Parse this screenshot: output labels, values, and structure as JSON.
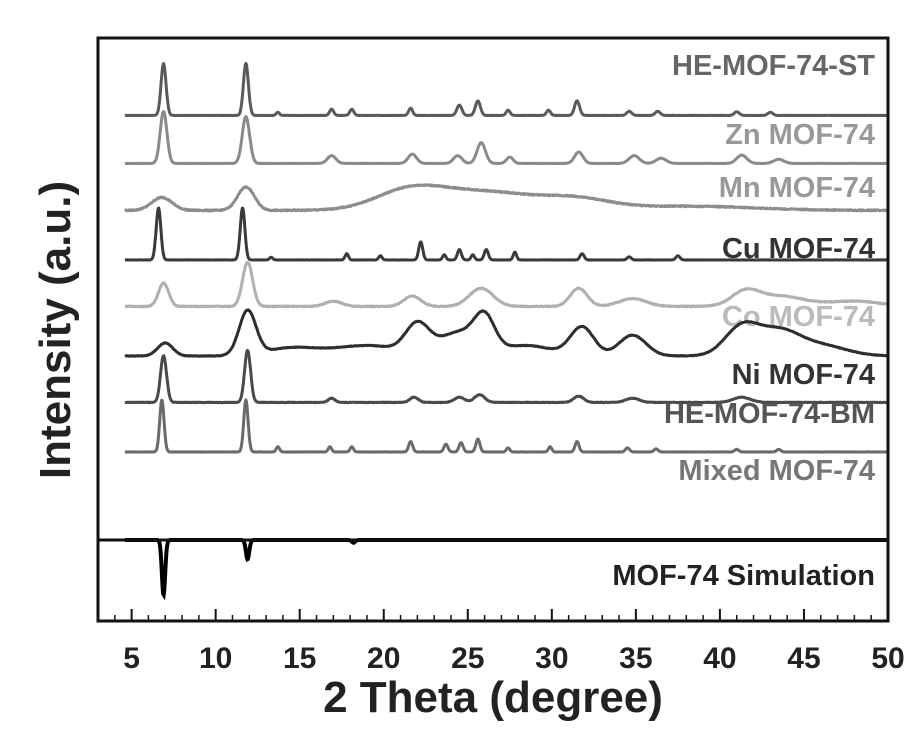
{
  "chart_data": {
    "type": "line",
    "xlabel": "2 Theta (degree)",
    "ylabel": "Intensity (a.u.)",
    "xlim": [
      3,
      50
    ],
    "x_ticks": [
      5,
      10,
      15,
      20,
      25,
      30,
      35,
      40,
      45,
      50
    ],
    "grid": false,
    "legend": "inline labels at right of each trace",
    "series": [
      {
        "name": "HE-MOF-74-ST",
        "color": "#5a5a5a",
        "baseline": 0.03,
        "noise": 0.004,
        "peaks": [
          [
            6.9,
            1.0,
            0.15
          ],
          [
            11.8,
            1.0,
            0.15
          ],
          [
            13.7,
            0.06,
            0.1
          ],
          [
            16.9,
            0.12,
            0.12
          ],
          [
            18.1,
            0.12,
            0.12
          ],
          [
            21.6,
            0.14,
            0.12
          ],
          [
            24.5,
            0.2,
            0.15
          ],
          [
            25.6,
            0.28,
            0.15
          ],
          [
            27.4,
            0.1,
            0.12
          ],
          [
            29.8,
            0.1,
            0.12
          ],
          [
            31.5,
            0.28,
            0.15
          ],
          [
            34.6,
            0.08,
            0.15
          ],
          [
            36.3,
            0.08,
            0.15
          ],
          [
            41.0,
            0.07,
            0.15
          ],
          [
            43.0,
            0.06,
            0.15
          ]
        ]
      },
      {
        "name": "Zn MOF-74",
        "color": "#8a8a8a",
        "baseline": 0.03,
        "noise": 0.004,
        "peaks": [
          [
            6.9,
            1.0,
            0.2
          ],
          [
            11.8,
            0.9,
            0.22
          ],
          [
            16.9,
            0.15,
            0.25
          ],
          [
            21.7,
            0.18,
            0.25
          ],
          [
            24.4,
            0.15,
            0.25
          ],
          [
            25.8,
            0.4,
            0.25
          ],
          [
            27.5,
            0.12,
            0.2
          ],
          [
            31.6,
            0.22,
            0.25
          ],
          [
            34.9,
            0.15,
            0.3
          ],
          [
            36.5,
            0.1,
            0.3
          ],
          [
            41.3,
            0.16,
            0.3
          ],
          [
            43.5,
            0.08,
            0.3
          ]
        ]
      },
      {
        "name": "Mn MOF-74",
        "color": "#8d8d8d",
        "baseline": 0.05,
        "noise": 0.02,
        "peaks": [
          [
            6.8,
            0.25,
            0.6
          ],
          [
            11.8,
            0.45,
            0.5
          ],
          [
            21.5,
            0.35,
            2.0
          ],
          [
            26.0,
            0.35,
            3.0
          ],
          [
            31.5,
            0.18,
            2.0
          ],
          [
            38.0,
            0.08,
            4.0
          ]
        ]
      },
      {
        "name": "Cu MOF-74",
        "color": "#3a3a3a",
        "baseline": 0.02,
        "noise": 0.003,
        "peaks": [
          [
            6.6,
            1.0,
            0.14
          ],
          [
            11.6,
            1.0,
            0.14
          ],
          [
            13.3,
            0.05,
            0.1
          ],
          [
            17.8,
            0.12,
            0.1
          ],
          [
            19.8,
            0.08,
            0.1
          ],
          [
            22.2,
            0.35,
            0.12
          ],
          [
            23.6,
            0.1,
            0.1
          ],
          [
            24.5,
            0.2,
            0.12
          ],
          [
            25.3,
            0.1,
            0.1
          ],
          [
            26.1,
            0.2,
            0.12
          ],
          [
            27.8,
            0.15,
            0.1
          ],
          [
            31.8,
            0.12,
            0.12
          ],
          [
            34.6,
            0.06,
            0.12
          ],
          [
            37.5,
            0.08,
            0.12
          ]
        ]
      },
      {
        "name": "Co MOF-74",
        "color": "#b0b0b0",
        "baseline": 0.05,
        "noise": 0.015,
        "peaks": [
          [
            6.9,
            0.45,
            0.3
          ],
          [
            11.9,
            0.85,
            0.3
          ],
          [
            17.0,
            0.1,
            0.5
          ],
          [
            21.7,
            0.2,
            0.5
          ],
          [
            25.8,
            0.35,
            0.7
          ],
          [
            31.6,
            0.35,
            0.5
          ],
          [
            34.8,
            0.15,
            0.8
          ],
          [
            41.5,
            0.25,
            0.8
          ],
          [
            43.5,
            0.2,
            1.5
          ],
          [
            48.0,
            0.1,
            1.5
          ]
        ]
      },
      {
        "name": "Ni MOF-74",
        "color": "#2e2e2e",
        "baseline": 0.02,
        "noise": 0.01,
        "peaks": [
          [
            7.0,
            0.25,
            0.45
          ],
          [
            11.9,
            0.85,
            0.5
          ],
          [
            14.5,
            0.15,
            1.5
          ],
          [
            19.0,
            0.2,
            2.0
          ],
          [
            22.0,
            0.55,
            0.7
          ],
          [
            24.5,
            0.45,
            1.2
          ],
          [
            26.0,
            0.6,
            0.6
          ],
          [
            28.5,
            0.2,
            1.5
          ],
          [
            31.8,
            0.55,
            0.7
          ],
          [
            34.8,
            0.4,
            0.8
          ],
          [
            41.3,
            0.55,
            1.0
          ],
          [
            43.5,
            0.45,
            1.2
          ],
          [
            46.0,
            0.2,
            1.5
          ]
        ]
      },
      {
        "name": "HE-MOF-74-BM",
        "color": "#4a4a4a",
        "baseline": 0.05,
        "noise": 0.01,
        "peaks": [
          [
            6.9,
            0.9,
            0.18
          ],
          [
            11.9,
            1.0,
            0.18
          ],
          [
            16.9,
            0.08,
            0.2
          ],
          [
            21.8,
            0.1,
            0.25
          ],
          [
            24.5,
            0.1,
            0.3
          ],
          [
            25.7,
            0.15,
            0.3
          ],
          [
            31.6,
            0.12,
            0.3
          ],
          [
            34.8,
            0.08,
            0.4
          ],
          [
            41.3,
            0.1,
            0.5
          ]
        ]
      },
      {
        "name": "Mixed MOF-74",
        "color": "#6a6a6a",
        "baseline": 0.02,
        "noise": 0.004,
        "peaks": [
          [
            6.8,
            1.0,
            0.13
          ],
          [
            11.8,
            1.0,
            0.13
          ],
          [
            13.7,
            0.1,
            0.1
          ],
          [
            16.8,
            0.1,
            0.1
          ],
          [
            18.1,
            0.1,
            0.1
          ],
          [
            21.6,
            0.2,
            0.12
          ],
          [
            23.7,
            0.15,
            0.12
          ],
          [
            24.6,
            0.18,
            0.12
          ],
          [
            25.6,
            0.25,
            0.12
          ],
          [
            27.4,
            0.08,
            0.1
          ],
          [
            29.9,
            0.1,
            0.1
          ],
          [
            31.5,
            0.2,
            0.12
          ],
          [
            34.5,
            0.08,
            0.12
          ],
          [
            36.2,
            0.06,
            0.12
          ],
          [
            41.0,
            0.05,
            0.12
          ],
          [
            43.5,
            0.05,
            0.12
          ]
        ]
      }
    ],
    "simulation": {
      "name": "MOF-74 Simulation",
      "color": "#000000",
      "direction": "down",
      "peaks": [
        [
          6.9,
          1.0,
          0.1
        ],
        [
          11.9,
          0.35,
          0.1
        ],
        [
          18.2,
          0.05,
          0.1
        ]
      ]
    }
  }
}
